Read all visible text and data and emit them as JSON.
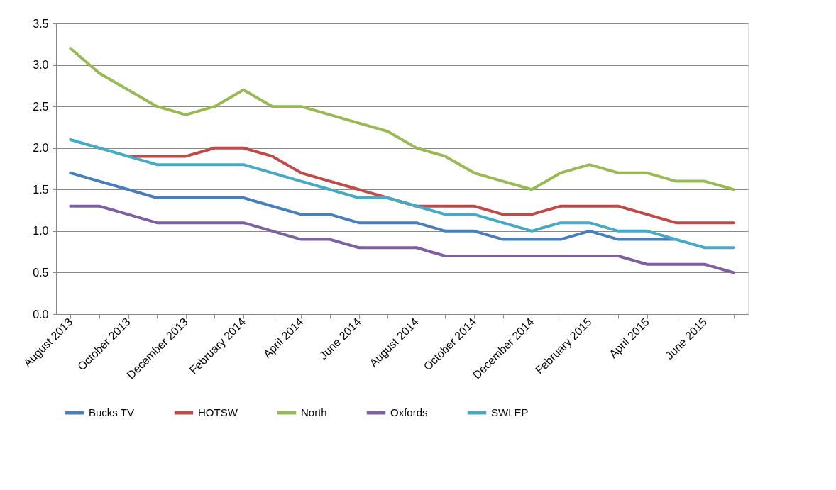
{
  "chart_data": {
    "type": "line",
    "categories": [
      "August 2013",
      null,
      "October 2013",
      null,
      "December 2013",
      null,
      "February 2014",
      null,
      "April 2014",
      null,
      "June 2014",
      null,
      "August 2014",
      null,
      "October 2014",
      null,
      "December 2014",
      null,
      "February 2015",
      null,
      "April 2015",
      null,
      "June 2015",
      null
    ],
    "series": [
      {
        "name": "Bucks TV",
        "color": "#4a7ebb",
        "values": [
          1.7,
          1.6,
          1.5,
          1.4,
          1.4,
          1.4,
          1.4,
          1.3,
          1.2,
          1.2,
          1.1,
          1.1,
          1.1,
          1.0,
          1.0,
          0.9,
          0.9,
          0.9,
          1.0,
          0.9,
          0.9,
          0.9,
          null,
          null
        ]
      },
      {
        "name": "HOTSW",
        "color": "#be4b48",
        "values": [
          null,
          null,
          1.9,
          1.9,
          1.9,
          2.0,
          2.0,
          1.9,
          1.7,
          1.6,
          1.5,
          1.4,
          1.3,
          1.3,
          1.3,
          1.2,
          1.2,
          1.3,
          1.3,
          1.3,
          1.2,
          1.1,
          1.1,
          1.1
        ]
      },
      {
        "name": "North",
        "color": "#98b954",
        "values": [
          3.2,
          2.9,
          2.7,
          2.5,
          2.4,
          2.5,
          2.7,
          2.5,
          2.5,
          2.4,
          2.3,
          2.2,
          2.0,
          1.9,
          1.7,
          1.6,
          1.5,
          1.7,
          1.8,
          1.7,
          1.7,
          1.6,
          1.6,
          1.5
        ]
      },
      {
        "name": "Oxfords",
        "color": "#7d60a0",
        "values": [
          1.3,
          1.3,
          1.2,
          1.1,
          1.1,
          1.1,
          1.1,
          1.0,
          0.9,
          0.9,
          0.8,
          0.8,
          0.8,
          0.7,
          0.7,
          0.7,
          0.7,
          0.7,
          0.7,
          0.7,
          0.6,
          0.6,
          0.6,
          0.5
        ]
      },
      {
        "name": "SWLEP",
        "color": "#46aac5",
        "values": [
          2.1,
          2.0,
          1.9,
          1.8,
          1.8,
          1.8,
          1.8,
          1.7,
          1.6,
          1.5,
          1.4,
          1.4,
          1.3,
          1.2,
          1.2,
          1.1,
          1.0,
          1.1,
          1.1,
          1.0,
          1.0,
          0.9,
          0.8,
          0.8
        ]
      }
    ],
    "ylim": [
      0.0,
      3.5
    ],
    "yticks": [
      {
        "value": 0,
        "label": "0.0"
      },
      {
        "value": 0.5,
        "label": "0.5"
      },
      {
        "value": 1,
        "label": "1.0"
      },
      {
        "value": 1.5,
        "label": "1.5"
      },
      {
        "value": 2,
        "label": "2.0"
      },
      {
        "value": 2.5,
        "label": "2.5"
      },
      {
        "value": 3,
        "label": "3.0"
      },
      {
        "value": 3.5,
        "label": "3.5"
      }
    ],
    "grid": "y",
    "legend": "bottom",
    "marker": "none",
    "line_style": "solid"
  }
}
